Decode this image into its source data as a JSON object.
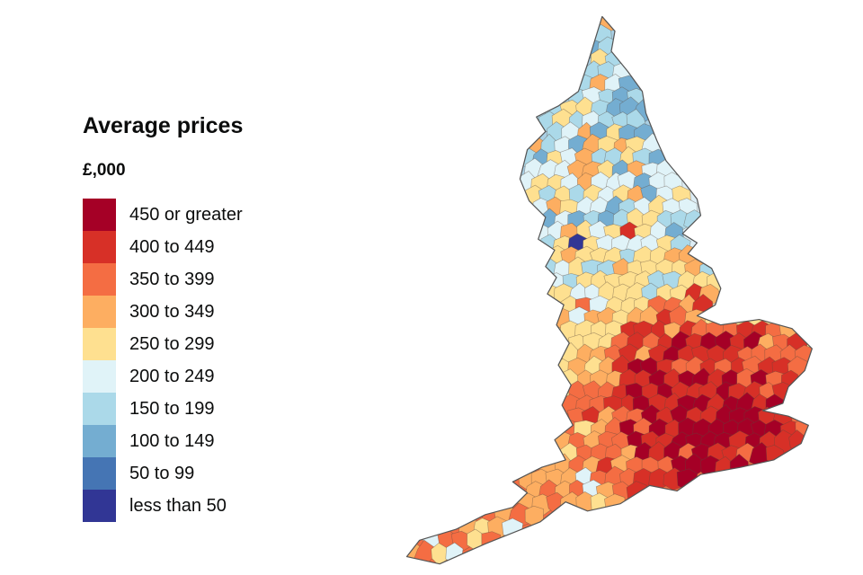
{
  "legend": {
    "title": "Average prices",
    "unit": "£,000",
    "items": [
      {
        "label": "450 or greater",
        "color": "#a50026"
      },
      {
        "label": "400 to 449",
        "color": "#d73027"
      },
      {
        "label": "350 to 399",
        "color": "#f46d43"
      },
      {
        "label": "300 to 349",
        "color": "#fdae61"
      },
      {
        "label": "250 to 299",
        "color": "#fee090"
      },
      {
        "label": "200 to 249",
        "color": "#e0f3f8"
      },
      {
        "label": "150 to 199",
        "color": "#abd9e9"
      },
      {
        "label": "100 to 149",
        "color": "#74add1"
      },
      {
        "label": "50 to 99",
        "color": "#4575b4"
      },
      {
        "label": "less than 50",
        "color": "#313695"
      }
    ]
  },
  "map": {
    "border_color": "#5b4a3d",
    "outline_color": "#555555"
  }
}
